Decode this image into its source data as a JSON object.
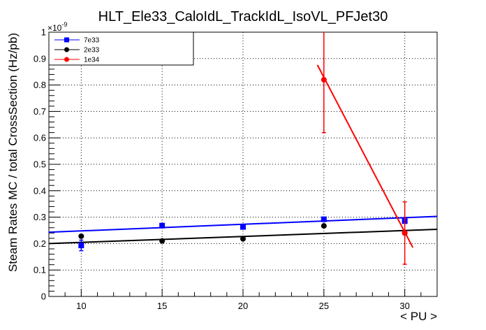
{
  "chart_data": {
    "type": "scatter",
    "title": "HLT_Ele33_CaloIdL_TrackIdL_IsoVL_PFJet30",
    "xlabel": "< PU >",
    "ylabel": "Steam Rates MC / total CrossSection (Hz/pb)",
    "y_exponent_label": "×10",
    "y_exponent_power": "-9",
    "xlim": [
      8,
      32
    ],
    "ylim": [
      0,
      1.0
    ],
    "x_ticks": [
      10,
      15,
      20,
      25,
      30
    ],
    "x_tick_labels": [
      "10",
      "15",
      "20",
      "25",
      "30"
    ],
    "y_ticks": [
      0,
      0.1,
      0.2,
      0.3,
      0.4,
      0.5,
      0.6,
      0.7,
      0.8,
      0.9,
      1.0
    ],
    "y_tick_labels": [
      "0",
      "0.1",
      "0.2",
      "0.3",
      "0.4",
      "0.5",
      "0.6",
      "0.7",
      "0.8",
      "0.9",
      "1"
    ],
    "grid": true,
    "legend_position": "top-left",
    "series": [
      {
        "name": "7e33",
        "color": "#0000ff",
        "marker": "square",
        "points": [
          {
            "x": 10,
            "y": 0.193,
            "err": 0.02
          },
          {
            "x": 15,
            "y": 0.268,
            "err": 0.004
          },
          {
            "x": 20,
            "y": 0.263,
            "err": 0.004
          },
          {
            "x": 25,
            "y": 0.292,
            "err": 0.004
          },
          {
            "x": 30,
            "y": 0.285,
            "err": 0.004
          }
        ],
        "fit": {
          "x": [
            8,
            32
          ],
          "y": [
            0.243,
            0.303
          ]
        }
      },
      {
        "name": "2e33",
        "color": "#000000",
        "marker": "circle",
        "points": [
          {
            "x": 10,
            "y": 0.228,
            "err": 0.004
          },
          {
            "x": 15,
            "y": 0.21,
            "err": 0.004
          },
          {
            "x": 20,
            "y": 0.218,
            "err": 0.004
          },
          {
            "x": 25,
            "y": 0.267,
            "err": 0.004
          },
          {
            "x": 30,
            "y": 0.24,
            "err": 0.004
          }
        ],
        "fit": {
          "x": [
            8,
            32
          ],
          "y": [
            0.2,
            0.254
          ]
        }
      },
      {
        "name": "1e34",
        "color": "#ff0000",
        "marker": "circle",
        "points": [
          {
            "x": 25,
            "y": 0.82,
            "err": 0.2
          },
          {
            "x": 30,
            "y": 0.24,
            "err": 0.118
          }
        ],
        "fit": {
          "x": [
            24.6,
            30.5
          ],
          "y": [
            0.876,
            0.185
          ]
        }
      }
    ]
  }
}
